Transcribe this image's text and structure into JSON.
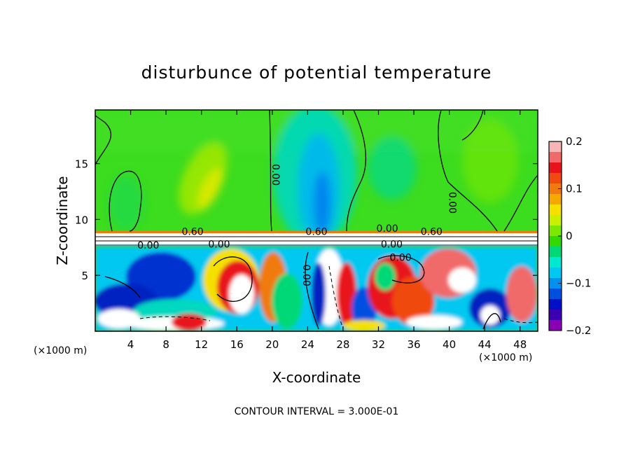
{
  "chart_data": {
    "type": "heatmap",
    "title": "disturbunce of potential temperature",
    "xlabel": "X-coordinate",
    "ylabel": "Z-coordinate",
    "x_unit_label": "(×1000 m)",
    "y_unit_label": "(×1000 m)",
    "x_ticks": [
      4,
      8,
      12,
      16,
      20,
      24,
      28,
      32,
      36,
      40,
      44,
      48
    ],
    "y_ticks": [
      5,
      10,
      15
    ],
    "xlim": [
      0,
      50
    ],
    "ylim": [
      0,
      19.8
    ],
    "footer": "CONTOUR INTERVAL = 3.000E-01",
    "colorbar": {
      "ticks": [
        "0.2",
        "0.1",
        "0",
        "−0.1",
        "−0.2"
      ],
      "tick_values": [
        0.2,
        0.1,
        0,
        -0.1,
        -0.2
      ],
      "range": [
        -0.2,
        0.2
      ],
      "colors": [
        "#f7b5b5",
        "#f06a6a",
        "#e8141c",
        "#f04a10",
        "#f07a10",
        "#f5a800",
        "#f5e000",
        "#c8f000",
        "#7ae800",
        "#32d800",
        "#00d878",
        "#00e8d0",
        "#00c8f0",
        "#0090f0",
        "#0050e0",
        "#0010c8",
        "#3c00b4",
        "#8c00b4"
      ]
    },
    "contour_labels": [
      {
        "text": "0.60",
        "x": 11,
        "z": 8.6,
        "rotate": 0
      },
      {
        "text": "0.00",
        "x": 6,
        "z": 7.4,
        "rotate": 0
      },
      {
        "text": "0.00",
        "x": 14,
        "z": 7.5,
        "rotate": 0
      },
      {
        "text": "0.60",
        "x": 25,
        "z": 8.6,
        "rotate": 0
      },
      {
        "text": "0.00",
        "x": 33,
        "z": 8.9,
        "rotate": 0
      },
      {
        "text": "0.00",
        "x": 33.5,
        "z": 7.5,
        "rotate": 0
      },
      {
        "text": "0.60",
        "x": 38,
        "z": 8.6,
        "rotate": 0
      },
      {
        "text": "0.00",
        "x": 34.5,
        "z": 6.3,
        "rotate": 0
      },
      {
        "text": "0.00",
        "x": 20,
        "z": 14,
        "rotate": 90
      },
      {
        "text": "0.00",
        "x": 40,
        "z": 11.5,
        "rotate": 90
      },
      {
        "text": "0.00",
        "x": 23.5,
        "z": 5,
        "rotate": 90
      }
    ]
  }
}
